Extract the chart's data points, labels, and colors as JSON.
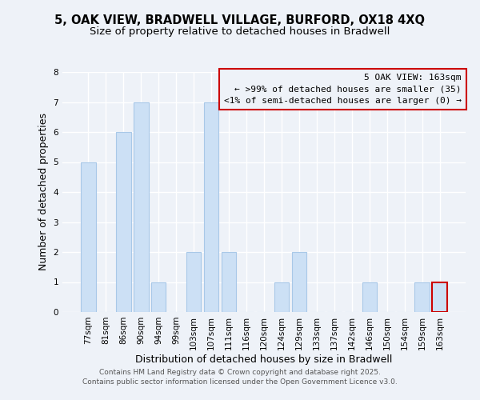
{
  "title_line1": "5, OAK VIEW, BRADWELL VILLAGE, BURFORD, OX18 4XQ",
  "title_line2": "Size of property relative to detached houses in Bradwell",
  "xlabel": "Distribution of detached houses by size in Bradwell",
  "ylabel": "Number of detached properties",
  "categories": [
    "77sqm",
    "81sqm",
    "86sqm",
    "90sqm",
    "94sqm",
    "99sqm",
    "103sqm",
    "107sqm",
    "111sqm",
    "116sqm",
    "120sqm",
    "124sqm",
    "129sqm",
    "133sqm",
    "137sqm",
    "142sqm",
    "146sqm",
    "150sqm",
    "154sqm",
    "159sqm",
    "163sqm"
  ],
  "values": [
    5,
    0,
    6,
    7,
    1,
    0,
    2,
    7,
    2,
    0,
    0,
    1,
    2,
    0,
    0,
    0,
    1,
    0,
    0,
    1,
    1
  ],
  "bar_color": "#cce0f5",
  "bar_edge_color": "#a8c8e8",
  "highlight_bar_index": 20,
  "highlight_bar_edge_color": "#cc0000",
  "annotation_box_edge_color": "#cc0000",
  "annotation_title": "5 OAK VIEW: 163sqm",
  "annotation_line1": "← >99% of detached houses are smaller (35)",
  "annotation_line2": "<1% of semi-detached houses are larger (0) →",
  "ylim": [
    0,
    8
  ],
  "yticks": [
    0,
    1,
    2,
    3,
    4,
    5,
    6,
    7,
    8
  ],
  "footer_line1": "Contains HM Land Registry data © Crown copyright and database right 2025.",
  "footer_line2": "Contains public sector information licensed under the Open Government Licence v3.0.",
  "background_color": "#eef2f8",
  "grid_color": "#ffffff",
  "title_fontsize": 10.5,
  "subtitle_fontsize": 9.5,
  "axis_label_fontsize": 9,
  "tick_fontsize": 7.5,
  "annotation_fontsize": 8,
  "footer_fontsize": 6.5
}
